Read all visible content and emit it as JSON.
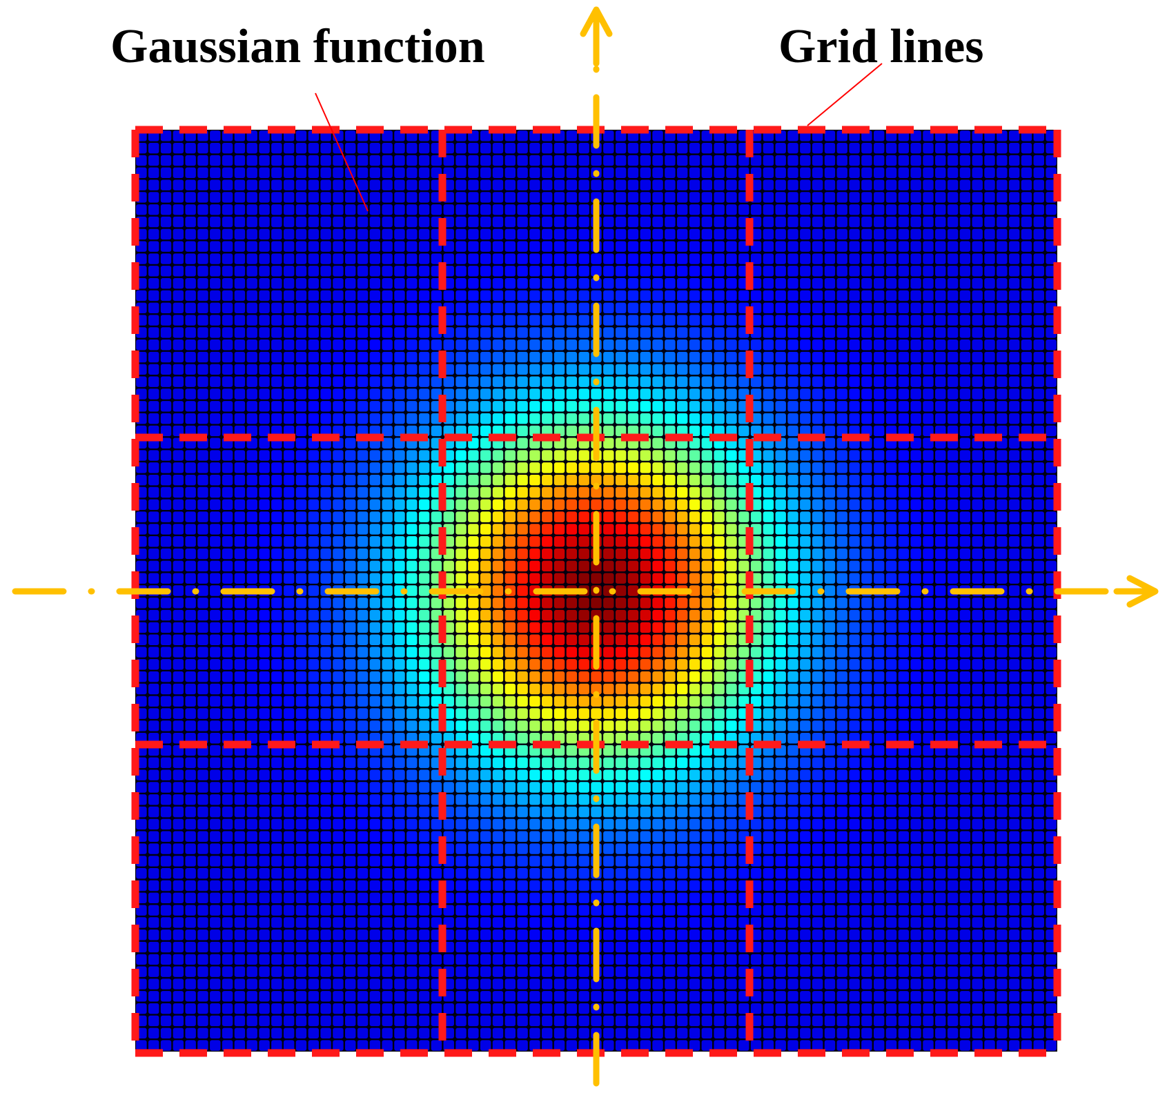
{
  "labels": {
    "gaussian_function": "Gaussian function",
    "grid_lines": "Grid lines"
  },
  "colors": {
    "grid_lines": "#ff1a1a",
    "axes": "#ffc000",
    "leader_lines": "#ff0000",
    "cell_border": "#000010",
    "background": "#ffffff"
  },
  "gaussian": {
    "colormap": "jet",
    "cells_per_side": 75,
    "grid_divisions": 3,
    "sigma_fraction_of_half_width": 0.27
  },
  "icons": {
    "x_axis_arrow": "arrow-right-icon",
    "y_axis_arrow": "arrow-up-icon"
  }
}
